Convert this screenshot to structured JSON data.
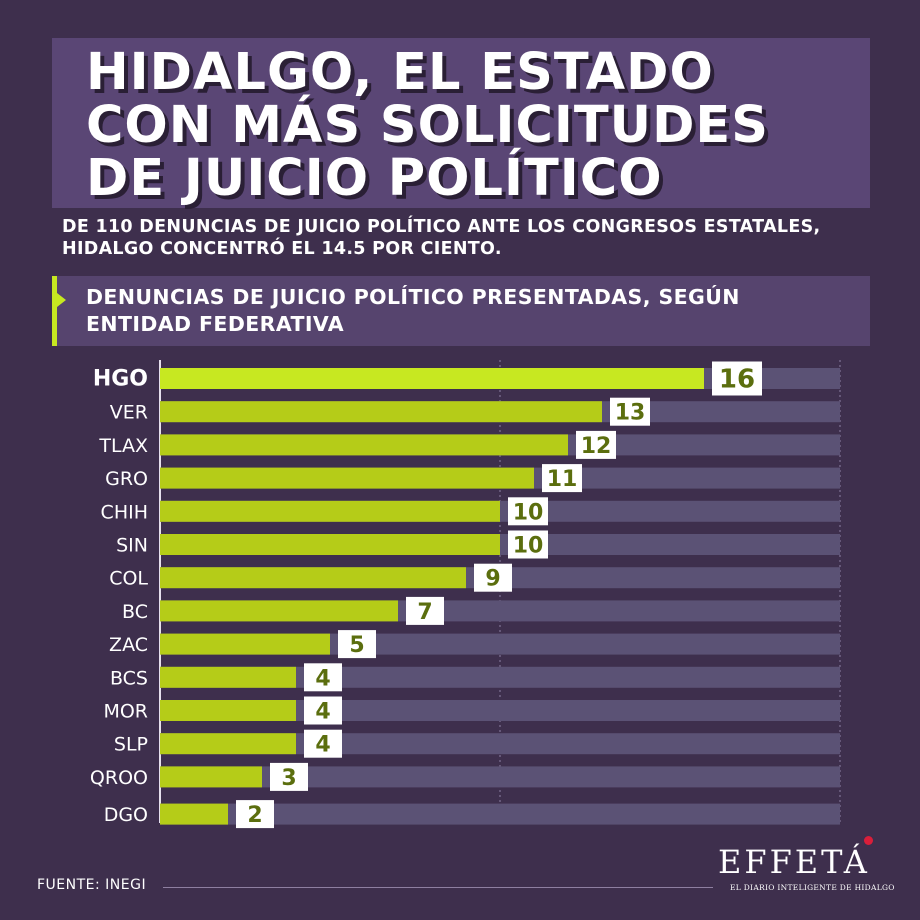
{
  "title": "HIDALGO, EL ESTADO CON MÁS SOLICITUDES DE JUICIO POLÍTICO",
  "title_lines": [
    "HIDALGO, EL ESTADO",
    "CON MÁS SOLICITUDES",
    "DE JUICIO POLÍTICO"
  ],
  "subtitle_lines": [
    "DE 110 DENUNCIAS DE JUICIO POLÍTICO ANTE LOS CONGRESOS ESTATALES,",
    "HIDALGO CONCENTRÓ EL 14.5 POR CIENTO."
  ],
  "chart_title_lines": [
    "DENUNCIAS DE JUICIO POLÍTICO PRESENTADAS, SEGÚN",
    "ENTIDAD FEDERATIVA"
  ],
  "source": "FUENTE: INEGI",
  "logo": {
    "name": "EFFETÁ",
    "tagline": "EL DIARIO INTELIGENTE DE HIDALGO"
  },
  "colors": {
    "background": "#3e2f4d",
    "bar": "#b5cc18",
    "highlight_bar": "#c7e821",
    "track": "#5b5275",
    "label_box": "#ffffff",
    "value_text": "#5b6e0e",
    "logo_accent": "#d91e3a"
  },
  "chart_data": {
    "type": "bar",
    "orientation": "horizontal",
    "categories": [
      "HGO",
      "VER",
      "TLAX",
      "GRO",
      "CHIH",
      "SIN",
      "COL",
      "BC",
      "ZAC",
      "BCS",
      "MOR",
      "SLP",
      "QROO",
      "DGO"
    ],
    "values": [
      16,
      13,
      12,
      11,
      10,
      10,
      9,
      7,
      5,
      4,
      4,
      4,
      3,
      2
    ],
    "highlight": "HGO",
    "xlim": [
      0,
      20
    ],
    "grid": true
  }
}
